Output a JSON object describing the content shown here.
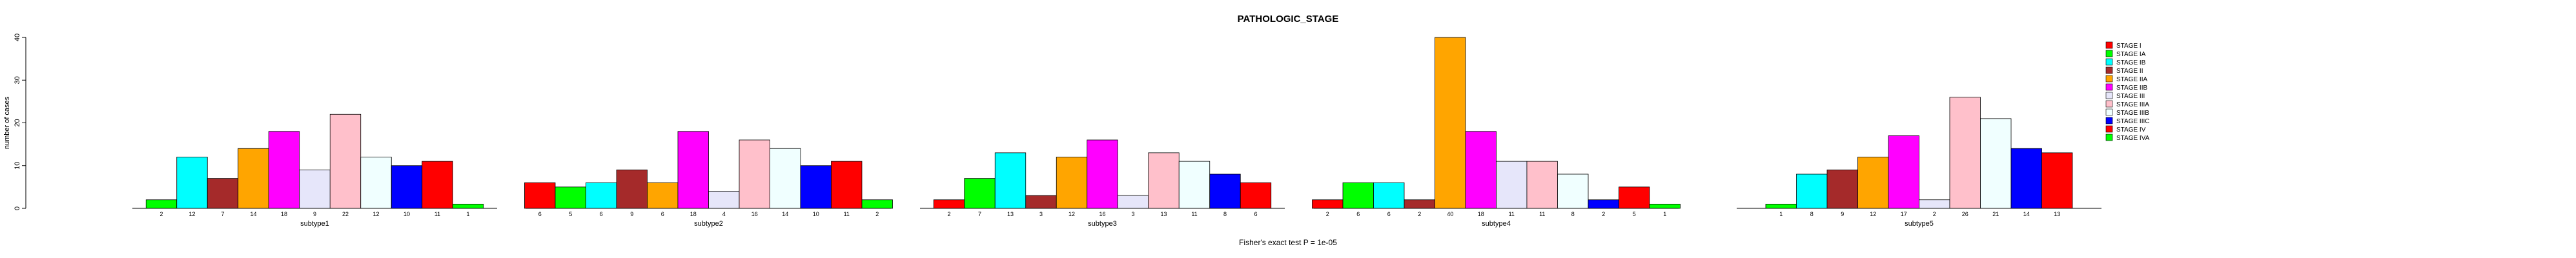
{
  "chart_data": {
    "type": "bar",
    "title": "PATHOLOGIC_STAGE",
    "ylabel": "number of cases",
    "ylim": [
      0,
      40
    ],
    "yticks": [
      0,
      10,
      20,
      30,
      40
    ],
    "footnote": "Fisher's exact test P = 1e-05",
    "legend_position": "right",
    "grid": false,
    "legend": [
      {
        "name": "STAGE I",
        "color": "#ff0000"
      },
      {
        "name": "STAGE IA",
        "color": "#00ff00"
      },
      {
        "name": "STAGE IB",
        "color": "#00ffff"
      },
      {
        "name": "STAGE II",
        "color": "#a52a2a"
      },
      {
        "name": "STAGE IIA",
        "color": "#ffa500"
      },
      {
        "name": "STAGE IIB",
        "color": "#ff00ff"
      },
      {
        "name": "STAGE III",
        "color": "#e6e6fa"
      },
      {
        "name": "STAGE IIIA",
        "color": "#ffc0cb"
      },
      {
        "name": "STAGE IIIB",
        "color": "#f0ffff"
      },
      {
        "name": "STAGE IIIC",
        "color": "#0000ff"
      },
      {
        "name": "STAGE IV",
        "color": "#ff0000"
      },
      {
        "name": "STAGE IVA",
        "color": "#00ff00"
      }
    ],
    "groups": [
      {
        "name": "subtype1",
        "values": [
          2,
          12,
          7,
          14,
          18,
          9,
          22,
          12,
          10,
          11,
          1
        ],
        "colors": [
          "#00ff00",
          "#00ffff",
          "#a52a2a",
          "#ffa500",
          "#ff00ff",
          "#e6e6fa",
          "#ffc0cb",
          "#f0ffff",
          "#0000ff",
          "#ff0000",
          "#00ff00"
        ]
      },
      {
        "name": "subtype2",
        "values": [
          6,
          5,
          6,
          9,
          6,
          18,
          4,
          16,
          14,
          10,
          11,
          2
        ],
        "colors": [
          "#ff0000",
          "#00ff00",
          "#00ffff",
          "#a52a2a",
          "#ffa500",
          "#ff00ff",
          "#e6e6fa",
          "#ffc0cb",
          "#f0ffff",
          "#0000ff",
          "#ff0000",
          "#00ff00"
        ]
      },
      {
        "name": "subtype3",
        "values": [
          2,
          7,
          13,
          3,
          12,
          16,
          3,
          13,
          11,
          8,
          6
        ],
        "colors": [
          "#ff0000",
          "#00ff00",
          "#00ffff",
          "#a52a2a",
          "#ffa500",
          "#ff00ff",
          "#e6e6fa",
          "#ffc0cb",
          "#f0ffff",
          "#0000ff",
          "#ff0000"
        ]
      },
      {
        "name": "subtype4",
        "values": [
          2,
          6,
          6,
          2,
          40,
          18,
          11,
          11,
          8,
          2,
          5,
          1
        ],
        "colors": [
          "#ff0000",
          "#00ff00",
          "#00ffff",
          "#a52a2a",
          "#ffa500",
          "#ff00ff",
          "#e6e6fa",
          "#ffc0cb",
          "#f0ffff",
          "#0000ff",
          "#ff0000",
          "#00ff00"
        ]
      },
      {
        "name": "subtype5",
        "values": [
          1,
          8,
          9,
          12,
          17,
          2,
          26,
          21,
          14,
          13
        ],
        "colors": [
          "#00ff00",
          "#00ffff",
          "#a52a2a",
          "#ffa500",
          "#ff00ff",
          "#e6e6fa",
          "#ffc0cb",
          "#f0ffff",
          "#0000ff",
          "#ff0000"
        ]
      }
    ]
  }
}
